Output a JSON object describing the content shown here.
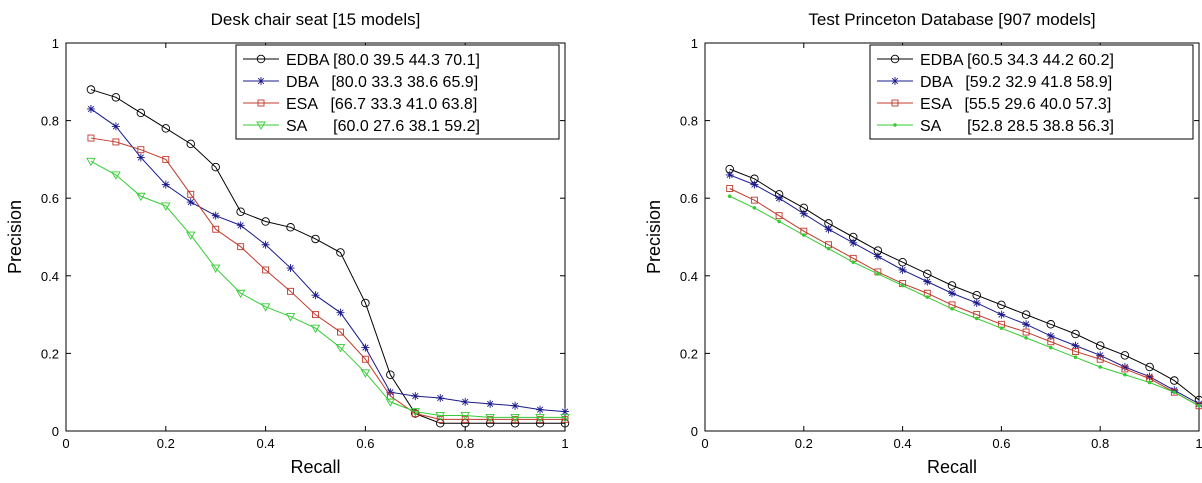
{
  "colors": {
    "EDBA": "#000000",
    "DBA": "#1a1a8c",
    "ESA": "#c0392b",
    "SA": "#33cc33"
  },
  "chart_data": [
    {
      "type": "line",
      "title": "Desk chair seat [15 models]",
      "xlabel": "Recall",
      "ylabel": "Precision",
      "xlim": [
        0,
        1
      ],
      "ylim": [
        0,
        1
      ],
      "xticks": [
        "0",
        "0.2",
        "0.4",
        "0.6",
        "0.8",
        "1"
      ],
      "yticks": [
        "0",
        "0.2",
        "0.4",
        "0.6",
        "0.8",
        "1"
      ],
      "grid": false,
      "legend_position": "top-right",
      "x": [
        0.05,
        0.1,
        0.15,
        0.2,
        0.25,
        0.3,
        0.35,
        0.4,
        0.45,
        0.5,
        0.55,
        0.6,
        0.65,
        0.7,
        0.75,
        0.8,
        0.85,
        0.9,
        0.95,
        1.0
      ],
      "series": [
        {
          "name": "EDBA",
          "legend_label": "EDBA [80.0 39.5 44.3 70.1]",
          "marker": "circle",
          "values": [
            0.88,
            0.86,
            0.82,
            0.78,
            0.74,
            0.68,
            0.565,
            0.54,
            0.525,
            0.495,
            0.46,
            0.33,
            0.145,
            0.045,
            0.02,
            0.02,
            0.02,
            0.02,
            0.02,
            0.02
          ]
        },
        {
          "name": "DBA",
          "legend_label": "DBA   [80.0 33.3 38.6 65.9]",
          "marker": "star",
          "values": [
            0.83,
            0.785,
            0.705,
            0.635,
            0.59,
            0.555,
            0.53,
            0.48,
            0.42,
            0.35,
            0.305,
            0.215,
            0.1,
            0.09,
            0.085,
            0.075,
            0.07,
            0.065,
            0.055,
            0.05
          ]
        },
        {
          "name": "ESA",
          "legend_label": "ESA   [66.7 33.3 41.0 63.8]",
          "marker": "square",
          "values": [
            0.755,
            0.745,
            0.725,
            0.7,
            0.61,
            0.52,
            0.475,
            0.415,
            0.36,
            0.3,
            0.255,
            0.185,
            0.09,
            0.045,
            0.03,
            0.03,
            0.03,
            0.03,
            0.03,
            0.03
          ]
        },
        {
          "name": "SA",
          "legend_label": "SA      [60.0 27.6 38.1 59.2]",
          "marker": "triangle-down",
          "values": [
            0.695,
            0.66,
            0.605,
            0.58,
            0.505,
            0.42,
            0.355,
            0.32,
            0.295,
            0.265,
            0.215,
            0.15,
            0.075,
            0.05,
            0.04,
            0.04,
            0.035,
            0.035,
            0.035,
            0.035
          ]
        }
      ]
    },
    {
      "type": "line",
      "title": "Test Princeton Database [907 models]",
      "xlabel": "Recall",
      "ylabel": "Precision",
      "xlim": [
        0,
        1
      ],
      "ylim": [
        0,
        1
      ],
      "xticks": [
        "0",
        "0.2",
        "0.4",
        "0.6",
        "0.8",
        "1"
      ],
      "yticks": [
        "0",
        "0.2",
        "0.4",
        "0.6",
        "0.8",
        "1"
      ],
      "grid": false,
      "legend_position": "top-right",
      "x": [
        0.05,
        0.1,
        0.15,
        0.2,
        0.25,
        0.3,
        0.35,
        0.4,
        0.45,
        0.5,
        0.55,
        0.6,
        0.65,
        0.7,
        0.75,
        0.8,
        0.85,
        0.9,
        0.95,
        1.0
      ],
      "series": [
        {
          "name": "EDBA",
          "legend_label": "EDBA [60.5 34.3 44.2 60.2]",
          "marker": "circle",
          "values": [
            0.675,
            0.65,
            0.61,
            0.575,
            0.535,
            0.5,
            0.465,
            0.435,
            0.405,
            0.375,
            0.35,
            0.325,
            0.3,
            0.275,
            0.25,
            0.22,
            0.195,
            0.165,
            0.13,
            0.08
          ]
        },
        {
          "name": "DBA",
          "legend_label": "DBA   [59.2 32.9 41.8 58.9]",
          "marker": "star",
          "values": [
            0.66,
            0.635,
            0.6,
            0.56,
            0.52,
            0.485,
            0.45,
            0.415,
            0.385,
            0.355,
            0.33,
            0.3,
            0.275,
            0.245,
            0.22,
            0.195,
            0.165,
            0.14,
            0.105,
            0.07
          ]
        },
        {
          "name": "ESA",
          "legend_label": "ESA   [55.5 29.6 40.0 57.3]",
          "marker": "square",
          "values": [
            0.625,
            0.595,
            0.555,
            0.515,
            0.48,
            0.445,
            0.41,
            0.38,
            0.355,
            0.325,
            0.3,
            0.275,
            0.255,
            0.23,
            0.205,
            0.185,
            0.16,
            0.135,
            0.1,
            0.065
          ]
        },
        {
          "name": "SA",
          "legend_label": "SA      [52.8 28.5 38.8 56.3]",
          "marker": "dot",
          "values": [
            0.605,
            0.575,
            0.54,
            0.505,
            0.47,
            0.435,
            0.405,
            0.375,
            0.345,
            0.315,
            0.29,
            0.265,
            0.24,
            0.215,
            0.19,
            0.165,
            0.145,
            0.125,
            0.1,
            0.065
          ]
        }
      ]
    }
  ]
}
